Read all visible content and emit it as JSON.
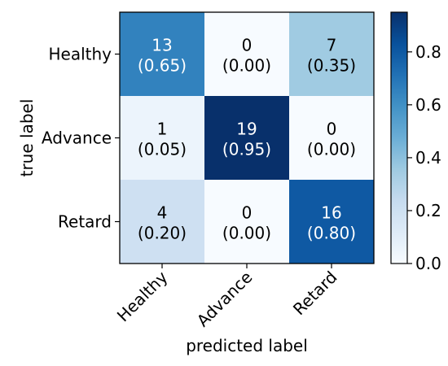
{
  "chart_data": {
    "type": "heatmap",
    "title": "",
    "xlabel": "predicted label",
    "ylabel": "true label",
    "row_labels": [
      "Healthy",
      "Advance",
      "Retard"
    ],
    "col_labels": [
      "Healthy",
      "Advance",
      "Retard"
    ],
    "counts": [
      [
        13,
        0,
        7
      ],
      [
        1,
        19,
        0
      ],
      [
        4,
        0,
        16
      ]
    ],
    "proportions": [
      [
        0.65,
        0.0,
        0.35
      ],
      [
        0.05,
        0.95,
        0.0
      ],
      [
        0.2,
        0.0,
        0.8
      ]
    ],
    "cell_labels": [
      [
        {
          "count": "13",
          "prop": "(0.65)"
        },
        {
          "count": "0",
          "prop": "(0.00)"
        },
        {
          "count": "7",
          "prop": "(0.35)"
        }
      ],
      [
        {
          "count": "1",
          "prop": "(0.05)"
        },
        {
          "count": "19",
          "prop": "(0.95)"
        },
        {
          "count": "0",
          "prop": "(0.00)"
        }
      ],
      [
        {
          "count": "4",
          "prop": "(0.20)"
        },
        {
          "count": "0",
          "prop": "(0.00)"
        },
        {
          "count": "16",
          "prop": "(0.80)"
        }
      ]
    ],
    "colorbar": {
      "min": 0.0,
      "max": 0.95,
      "ticks": [
        0.0,
        0.2,
        0.4,
        0.6,
        0.8
      ],
      "tick_labels": [
        "0.0",
        "0.2",
        "0.4",
        "0.6",
        "0.8"
      ],
      "colormap": "Blues"
    },
    "grid": false,
    "legend": "colorbar-right"
  }
}
